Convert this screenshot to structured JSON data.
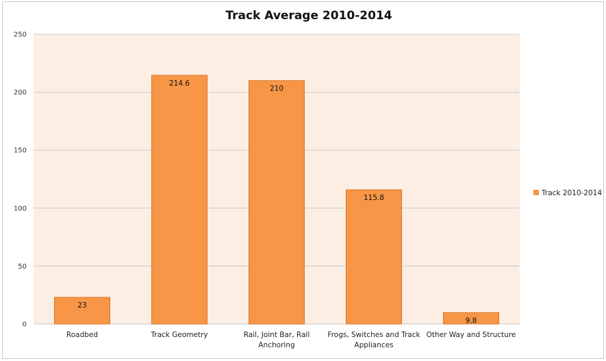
{
  "chart_data": {
    "type": "bar",
    "title": "Track Average 2010-2014",
    "categories": [
      [
        "Roadbed"
      ],
      [
        "Track Geometry"
      ],
      [
        "Rail, Joint Bar, Rail",
        "Anchoring"
      ],
      [
        "Frogs, Switches and Track",
        "Appliances"
      ],
      [
        "Other Way and Structure"
      ]
    ],
    "series": [
      {
        "name": "Track 2010-2014",
        "values": [
          23,
          214.6,
          210,
          115.8,
          9.8
        ],
        "labels": [
          "23",
          "214.6",
          "210",
          "115.8",
          "9.8"
        ]
      }
    ],
    "ylim": [
      0,
      250
    ],
    "yticks": [
      "0",
      "50",
      "100",
      "150",
      "200",
      "250"
    ],
    "grid": true,
    "legend_position": "right",
    "colors": {
      "bar": "#f79646",
      "bar_stroke": "#d9742c",
      "plot_background": "#fdeee4",
      "grid": "#c8c8c8"
    }
  }
}
